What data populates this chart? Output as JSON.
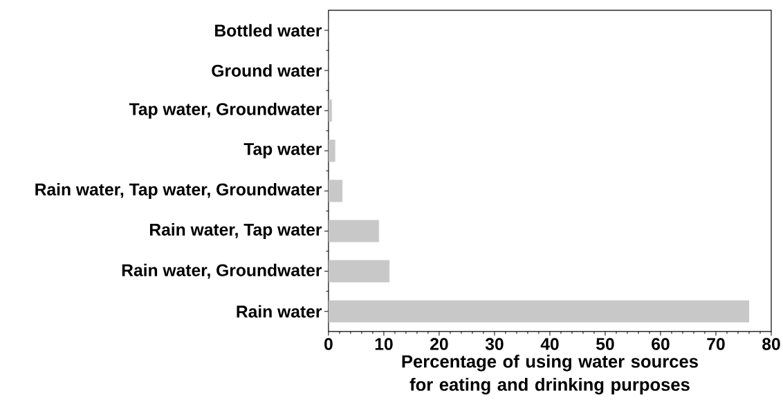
{
  "chart_data": {
    "type": "bar",
    "orientation": "horizontal",
    "categories": [
      "Bottled water",
      "Ground water",
      "Tap water, Groundwater",
      "Tap water",
      "Rain water, Tap water, Groundwater",
      "Rain water, Tap water",
      "Rain water, Groundwater",
      "Rain water"
    ],
    "values": [
      0,
      0,
      0.6,
      1.2,
      2.5,
      9.1,
      11,
      76
    ],
    "color": "#c8c8c8",
    "xlabel": "Percentage of using water sources for eating and drinking purposes",
    "xlim": [
      0,
      80
    ],
    "xticks": [
      0,
      10,
      20,
      30,
      40,
      50,
      60,
      70,
      80
    ],
    "grid": false,
    "legend": false
  }
}
